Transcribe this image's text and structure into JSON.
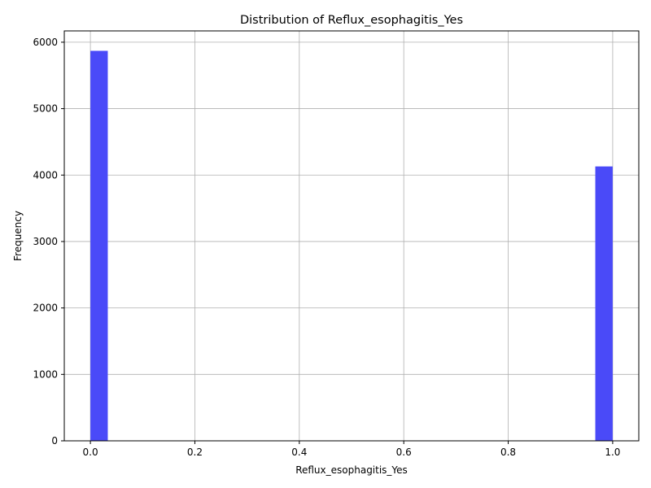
{
  "chart_data": {
    "type": "bar",
    "title": "Distribution of Reflux_esophagitis_Yes",
    "xlabel": "Reflux_esophagitis_Yes",
    "ylabel": "Frequency",
    "xlim": [
      -0.05,
      1.05
    ],
    "ylim": [
      0,
      6170
    ],
    "x_ticks": [
      0.0,
      0.2,
      0.4,
      0.6,
      0.8,
      1.0
    ],
    "x_tick_labels": [
      "0.0",
      "0.2",
      "0.4",
      "0.6",
      "0.8",
      "1.0"
    ],
    "y_ticks": [
      0,
      1000,
      2000,
      3000,
      4000,
      5000,
      6000
    ],
    "y_tick_labels": [
      "0",
      "1000",
      "2000",
      "3000",
      "4000",
      "5000",
      "6000"
    ],
    "bins": [
      {
        "x0": 0.0,
        "x1": 0.0333,
        "value": 5870
      },
      {
        "x0": 0.9667,
        "x1": 1.0,
        "value": 4130
      }
    ],
    "bar_color": "#4a4af8",
    "grid": true
  }
}
